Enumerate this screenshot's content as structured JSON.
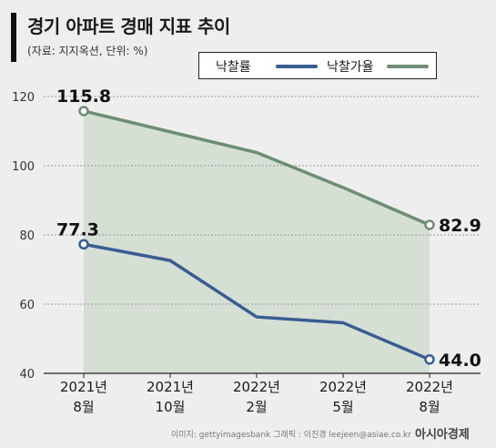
{
  "header": {
    "title": "경기 아파트 경매 지표 추이",
    "subtitle": "(자료: 지지옥션, 단위: %)"
  },
  "legend": {
    "series1": "낙찰률",
    "series2": "낙찰가율"
  },
  "footer": {
    "credit": "이미지: gettyimagesbank   그래픽 : 이진경 leejeen@asiae.co.kr",
    "brand": "아시아경제"
  },
  "colors": {
    "rate": "#385d93",
    "price_rate": "#6e8e74",
    "area_fill": "#d5dfd4"
  },
  "chart_data": {
    "type": "line",
    "categories": [
      "2021년\n8월",
      "2021년\n10월",
      "2022년\n2월",
      "2022년\n5월",
      "2022년\n8월"
    ],
    "ylim": [
      40,
      120
    ],
    "yticks": [
      40,
      60,
      80,
      100,
      120
    ],
    "grid": true,
    "series": [
      {
        "name": "낙찰률",
        "values": [
          77.3,
          72.6,
          56.3,
          54.6,
          44.0
        ]
      },
      {
        "name": "낙찰가율",
        "values": [
          115.8,
          109.8,
          103.8,
          93.7,
          82.9
        ]
      }
    ],
    "annotations": [
      {
        "series": 1,
        "index": 0,
        "text": "115.8"
      },
      {
        "series": 1,
        "index": 4,
        "text": "82.9"
      },
      {
        "series": 0,
        "index": 0,
        "text": "77.3"
      },
      {
        "series": 0,
        "index": 4,
        "text": "44.0"
      }
    ]
  }
}
